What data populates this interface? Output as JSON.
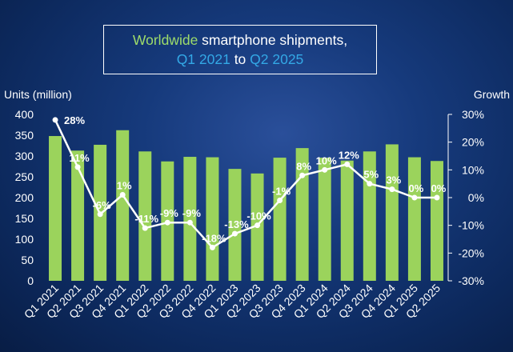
{
  "title": {
    "part1": "Worldwide",
    "part2": " smartphone shipments,",
    "part3": "Q1 2021",
    "part4": " to ",
    "part5": "Q2 2025"
  },
  "colors": {
    "bar": "#9bd35c",
    "line": "#ffffff",
    "title_green": "#9edc6a",
    "title_blue": "#33a8e6"
  },
  "chart_data": {
    "type": "bar",
    "categories": [
      "Q1 2021",
      "Q2 2021",
      "Q3 2021",
      "Q4 2021",
      "Q1 2022",
      "Q2 2022",
      "Q3 2022",
      "Q4 2022",
      "Q1 2023",
      "Q2 2023",
      "Q3 2023",
      "Q4 2023",
      "Q1 2024",
      "Q2 2024",
      "Q3 2024",
      "Q4 2024",
      "Q1 2025",
      "Q2 2025"
    ],
    "series": [
      {
        "type": "bar",
        "axis": "left",
        "values": [
          348,
          313,
          327,
          362,
          311,
          287,
          298,
          297,
          269,
          258,
          296,
          319,
          296,
          289,
          311,
          328,
          297,
          288
        ]
      },
      {
        "type": "line",
        "axis": "right",
        "values": [
          28,
          11,
          -6,
          1,
          -11,
          -9,
          -9,
          -18,
          -13,
          -10,
          -1,
          8,
          10,
          12,
          5,
          3,
          0,
          0
        ],
        "labels": [
          "28%",
          "11%",
          "-6%",
          "1%",
          "-11%",
          "-9%",
          "-9%",
          "-18%",
          "-13%",
          "-10%",
          "-1%",
          "8%",
          "10%",
          "12%",
          "5%",
          "3%",
          "0%",
          "0%"
        ]
      }
    ],
    "ylabel_left": "Units (million)",
    "ylabel_right": "Growth",
    "ylim_left": [
      0,
      400
    ],
    "yticks_left": [
      "0",
      "50",
      "100",
      "150",
      "200",
      "250",
      "300",
      "350",
      "400"
    ],
    "ylim_right": [
      -30,
      30
    ],
    "yticks_right": [
      "-30%",
      "-20%",
      "-10%",
      "0%",
      "10%",
      "20%",
      "30%"
    ],
    "grid": false,
    "legend": "none"
  }
}
